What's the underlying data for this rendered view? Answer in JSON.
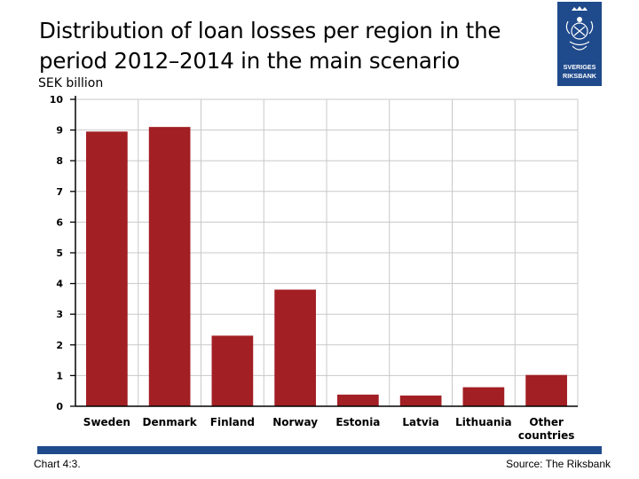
{
  "chart_data": {
    "type": "bar",
    "title": "Distribution of loan losses per region in the period 2012–2014 in the main scenario",
    "ylabel": "SEK billion",
    "categories": [
      "Sweden",
      "Denmark",
      "Finland",
      "Norway",
      "Estonia",
      "Latvia",
      "Lithuania",
      "Other countries"
    ],
    "values": [
      8.95,
      9.1,
      2.3,
      3.8,
      0.38,
      0.35,
      0.62,
      1.02
    ],
    "ylim": [
      0,
      10
    ],
    "yticks": [
      "0",
      "1",
      "2",
      "3",
      "4",
      "5",
      "6",
      "7",
      "8",
      "9",
      "10"
    ],
    "grid": true,
    "bar_color": "#a21f24"
  },
  "footer": {
    "chart_number": "Chart 4:3.",
    "source": "Source: The Riksbank"
  },
  "logo": {
    "icon": "riksbank-crest-icon",
    "text_line1": "SVERIGES",
    "text_line2": "RIKSBANK",
    "color": "#1f4a8c"
  }
}
